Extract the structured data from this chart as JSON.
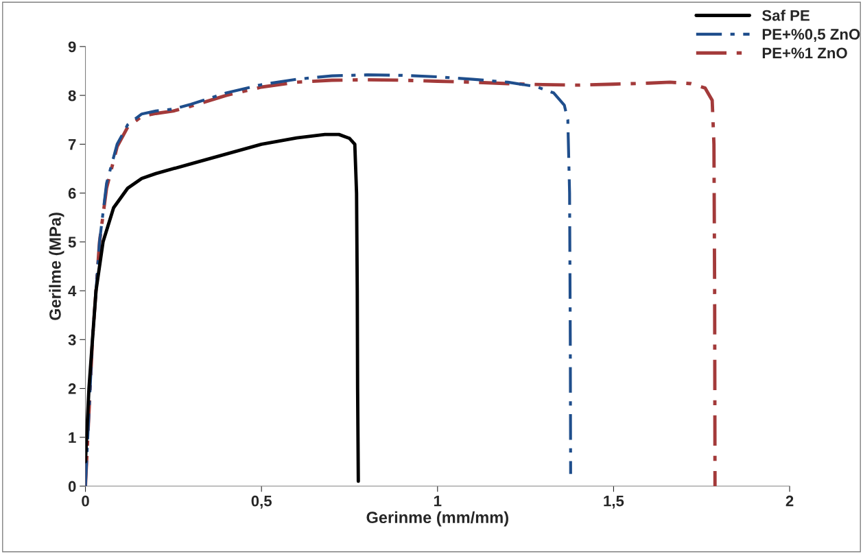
{
  "chart_data": {
    "type": "line",
    "xlabel": "Gerinme (mm/mm)",
    "ylabel": "Gerilme (MPa)",
    "xlim": [
      0,
      2
    ],
    "xticks": [
      0,
      {
        "value": 0.5,
        "label": "0,5"
      },
      1,
      {
        "value": 1.5,
        "label": "1,5"
      },
      2
    ],
    "ylim": [
      0,
      9
    ],
    "yticks": [
      0,
      1,
      2,
      3,
      4,
      5,
      6,
      7,
      8,
      9
    ],
    "grid": false,
    "legend": "top right",
    "marker": "none",
    "series": [
      {
        "name": "Saf PE",
        "color": "#000000",
        "line_style": "solid",
        "x": [
          0,
          0.01,
          0.02,
          0.03,
          0.05,
          0.08,
          0.12,
          0.16,
          0.2,
          0.3,
          0.4,
          0.5,
          0.6,
          0.68,
          0.72,
          0.75,
          0.765,
          0.77,
          0.772,
          0.773,
          0.775
        ],
        "values": [
          0.5,
          2,
          3,
          4,
          5,
          5.7,
          6.1,
          6.3,
          6.4,
          6.6,
          6.8,
          7.0,
          7.13,
          7.2,
          7.2,
          7.12,
          7.0,
          6.0,
          4.0,
          2.0,
          0.1
        ]
      },
      {
        "name": "PE+%0,5 ZnO",
        "color": "#1f4e8c",
        "line_style": "dashdot",
        "x": [
          0,
          0.01,
          0.02,
          0.04,
          0.06,
          0.09,
          0.12,
          0.16,
          0.2,
          0.25,
          0.3,
          0.4,
          0.5,
          0.6,
          0.7,
          0.8,
          0.9,
          1.0,
          1.1,
          1.2,
          1.28,
          1.33,
          1.36,
          1.37,
          1.375,
          1.377,
          1.378
        ],
        "values": [
          0,
          1.5,
          3,
          5,
          6.2,
          7.0,
          7.4,
          7.62,
          7.68,
          7.72,
          7.82,
          8.05,
          8.22,
          8.33,
          8.4,
          8.42,
          8.41,
          8.38,
          8.33,
          8.27,
          8.18,
          8.05,
          7.8,
          7.5,
          6,
          3,
          0.25
        ]
      },
      {
        "name": "PE+%1 ZnO",
        "color": "#a33a3a",
        "line_style": "dashdot",
        "x": [
          0,
          0.01,
          0.02,
          0.04,
          0.06,
          0.09,
          0.12,
          0.16,
          0.2,
          0.25,
          0.3,
          0.4,
          0.5,
          0.6,
          0.7,
          0.8,
          0.9,
          1.0,
          1.1,
          1.2,
          1.3,
          1.4,
          1.5,
          1.6,
          1.66,
          1.72,
          1.76,
          1.78,
          1.785,
          1.787,
          1.788
        ],
        "values": [
          0,
          1.5,
          3,
          5,
          6.1,
          6.95,
          7.35,
          7.57,
          7.63,
          7.68,
          7.78,
          8.0,
          8.17,
          8.27,
          8.31,
          8.32,
          8.31,
          8.29,
          8.27,
          8.24,
          8.22,
          8.21,
          8.23,
          8.25,
          8.27,
          8.24,
          8.15,
          7.9,
          7,
          4,
          0
        ]
      }
    ]
  }
}
